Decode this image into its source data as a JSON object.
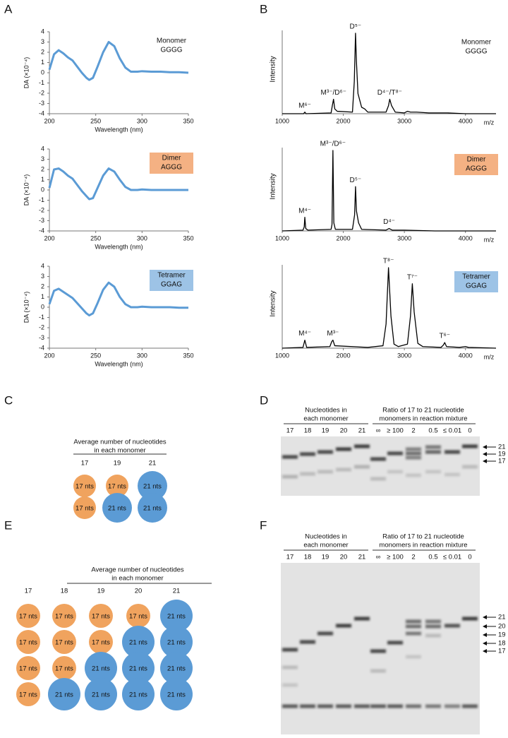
{
  "panel_labels": [
    "A",
    "B",
    "C",
    "D",
    "E",
    "F"
  ],
  "chart_data": [
    {
      "type": "line",
      "title_lines": [
        "Monomer",
        "GGGG"
      ],
      "title_box_color": null,
      "xlabel": "Wavelength (nm)",
      "ylabel": "DA (×10⁻⁴)",
      "xlim": [
        200,
        350
      ],
      "xticks": [
        200,
        250,
        300,
        350
      ],
      "ylim": [
        -4,
        4
      ],
      "yticks": [
        -4,
        -3,
        -2,
        -1,
        0,
        1,
        2,
        3,
        4
      ],
      "x": [
        200,
        205,
        210,
        215,
        220,
        225,
        230,
        235,
        240,
        243,
        247,
        252,
        258,
        264,
        270,
        276,
        282,
        288,
        295,
        300,
        310,
        320,
        330,
        340,
        350
      ],
      "series": [
        {
          "color": "#5b9bd5",
          "values": [
            0.3,
            1.8,
            2.2,
            1.9,
            1.5,
            1.2,
            0.6,
            0.0,
            -0.5,
            -0.7,
            -0.5,
            0.6,
            2.0,
            3.0,
            2.6,
            1.4,
            0.5,
            0.1,
            0.1,
            0.15,
            0.1,
            0.1,
            0.05,
            0.05,
            0.0
          ]
        }
      ]
    },
    {
      "type": "line",
      "title_lines": [
        "Dimer",
        "AGGG"
      ],
      "title_box_color": "#f4b183",
      "xlabel": "Wavelength (nm)",
      "ylabel": "DA (×10⁻⁴)",
      "xlim": [
        200,
        350
      ],
      "xticks": [
        200,
        250,
        300,
        350
      ],
      "ylim": [
        -4,
        4
      ],
      "yticks": [
        -4,
        -3,
        -2,
        -1,
        0,
        1,
        2,
        3,
        4
      ],
      "x": [
        200,
        205,
        210,
        215,
        220,
        225,
        230,
        235,
        240,
        243,
        247,
        252,
        258,
        264,
        270,
        276,
        282,
        288,
        295,
        300,
        310,
        320,
        330,
        340,
        350
      ],
      "series": [
        {
          "color": "#5b9bd5",
          "values": [
            0.2,
            2.0,
            2.1,
            1.8,
            1.4,
            1.1,
            0.5,
            -0.1,
            -0.6,
            -0.9,
            -0.8,
            0.2,
            1.4,
            2.1,
            1.8,
            1.0,
            0.3,
            0.0,
            0.0,
            0.05,
            0.0,
            0.0,
            0.0,
            0.0,
            0.0
          ]
        }
      ]
    },
    {
      "type": "line",
      "title_lines": [
        "Tetramer",
        "GGAG"
      ],
      "title_box_color": "#9dc3e6",
      "xlabel": "Wavelength (nm)",
      "ylabel": "DA (×10⁻⁴)",
      "xlim": [
        200,
        350
      ],
      "xticks": [
        200,
        250,
        300,
        350
      ],
      "ylim": [
        -4,
        4
      ],
      "yticks": [
        -4,
        -3,
        -2,
        -1,
        0,
        1,
        2,
        3,
        4
      ],
      "x": [
        200,
        205,
        210,
        215,
        220,
        225,
        230,
        235,
        240,
        243,
        247,
        252,
        258,
        264,
        270,
        276,
        282,
        288,
        295,
        300,
        310,
        320,
        330,
        340,
        350
      ],
      "series": [
        {
          "color": "#5b9bd5",
          "values": [
            0.3,
            1.6,
            1.8,
            1.5,
            1.2,
            0.9,
            0.4,
            -0.1,
            -0.6,
            -0.8,
            -0.6,
            0.4,
            1.7,
            2.4,
            2.0,
            1.0,
            0.3,
            0.0,
            0.0,
            0.05,
            0.0,
            0.0,
            0.0,
            -0.05,
            -0.05
          ]
        }
      ]
    },
    {
      "type": "spectrum",
      "title_lines": [
        "Monomer",
        "GGGG"
      ],
      "title_box_color": null,
      "xlabel": "m/z",
      "ylabel": "Intensity",
      "xlim": [
        1000,
        4500
      ],
      "xticks": [
        1000,
        2000,
        3000,
        4000
      ],
      "ylim": [
        0,
        100
      ],
      "x": [
        1000,
        1350,
        1370,
        1390,
        1800,
        1820,
        1840,
        1860,
        1900,
        2150,
        2180,
        2200,
        2215,
        2240,
        2300,
        2350,
        2400,
        2700,
        2740,
        2760,
        2790,
        2850,
        3000,
        3050,
        3100,
        3200,
        3400,
        3700,
        4000,
        4500
      ],
      "series": [
        {
          "color": "#000000",
          "values": [
            0,
            0,
            2,
            0,
            1,
            10,
            18,
            6,
            3,
            2,
            40,
            100,
            65,
            25,
            8,
            6,
            2,
            2,
            10,
            18,
            10,
            2,
            1,
            3,
            2,
            2,
            1,
            1,
            0,
            0
          ]
        }
      ],
      "annotations": [
        {
          "text": "M⁶⁻",
          "x": 1370
        },
        {
          "text": "M³⁻/D⁶⁻",
          "x": 1840
        },
        {
          "text": "D⁵⁻",
          "x": 2200
        },
        {
          "text": "D⁴⁻/T⁸⁻",
          "x": 2760
        }
      ]
    },
    {
      "type": "spectrum",
      "title_lines": [
        "Dimer",
        "AGGG"
      ],
      "title_box_color": "#f4b183",
      "xlabel": "m/z",
      "ylabel": "Intensity",
      "xlim": [
        1000,
        4500
      ],
      "xticks": [
        1000,
        2000,
        3000,
        4000
      ],
      "ylim": [
        0,
        100
      ],
      "x": [
        1000,
        1340,
        1360,
        1370,
        1385,
        1420,
        1800,
        1815,
        1830,
        1845,
        1870,
        2150,
        2185,
        2200,
        2215,
        2250,
        2300,
        2700,
        2750,
        2800,
        3000,
        3500,
        4500
      ],
      "series": [
        {
          "color": "#000000",
          "values": [
            0,
            1,
            5,
            17,
            3,
            1,
            2,
            8,
            100,
            10,
            2,
            2,
            20,
            55,
            25,
            10,
            2,
            1,
            3,
            1,
            1,
            0,
            0
          ]
        }
      ],
      "annotations": [
        {
          "text": "M⁴⁻",
          "x": 1370
        },
        {
          "text": "M³⁻/D⁶⁻",
          "x": 1830
        },
        {
          "text": "D⁵⁻",
          "x": 2200
        },
        {
          "text": "D⁴⁻",
          "x": 2750
        }
      ]
    },
    {
      "type": "spectrum",
      "title_lines": [
        "Tetramer",
        "GGAG"
      ],
      "title_box_color": "#9dc3e6",
      "xlabel": "m/z",
      "ylabel": "Intensity",
      "xlim": [
        1000,
        4500
      ],
      "xticks": [
        1000,
        2000,
        3000,
        4000
      ],
      "ylim": [
        0,
        100
      ],
      "x": [
        1000,
        1340,
        1370,
        1400,
        1780,
        1810,
        1830,
        1860,
        2400,
        2650,
        2700,
        2740,
        2780,
        2830,
        2900,
        3050,
        3100,
        3130,
        3160,
        3220,
        3300,
        3600,
        3640,
        3660,
        3690,
        3900,
        4000,
        4050,
        4500
      ],
      "series": [
        {
          "color": "#000000",
          "values": [
            0,
            1,
            10,
            1,
            2,
            8,
            10,
            3,
            1,
            3,
            30,
            100,
            40,
            5,
            2,
            5,
            40,
            80,
            45,
            6,
            2,
            1,
            4,
            7,
            2,
            1,
            2,
            1,
            0
          ]
        }
      ],
      "annotations": [
        {
          "text": "M⁴⁻",
          "x": 1370
        },
        {
          "text": "M³⁻",
          "x": 1830
        },
        {
          "text": "T⁸⁻",
          "x": 2740
        },
        {
          "text": "T⁷⁻",
          "x": 3130
        },
        {
          "text": "T⁶⁻",
          "x": 3660
        }
      ]
    }
  ],
  "panel_c": {
    "title_lines": [
      "Average number of nucleotides",
      "in each monomer"
    ],
    "unit_styles": [
      {
        "label": "17 nts",
        "color": "#f0a35e"
      },
      {
        "label": "21 nts",
        "color": "#5b9bd5"
      }
    ],
    "columns": [
      {
        "header": "17",
        "units": [
          "17 nts",
          "17 nts"
        ]
      },
      {
        "header": "19",
        "units": [
          "17 nts",
          "21 nts"
        ]
      },
      {
        "header": "21",
        "units": [
          "21 nts",
          "21 nts"
        ]
      }
    ]
  },
  "panel_d": {
    "group_titles": [
      [
        "Nucleotides in",
        "each monomer"
      ],
      [
        "Ratio of 17 to 21 nucleotide",
        "monomers in reaction mixture"
      ]
    ],
    "lanes": [
      [
        "17",
        "18",
        "19",
        "20",
        "21"
      ],
      [
        "∞",
        "≥ 100",
        "2",
        "0.5",
        "≤ 0.01",
        "0"
      ]
    ],
    "markers": [
      "21",
      "19",
      "17"
    ]
  },
  "panel_e": {
    "title_lines": [
      "Average number of nucleotides",
      "in each monomer"
    ],
    "unit_styles": [
      {
        "label": "17 nts",
        "color": "#f0a35e"
      },
      {
        "label": "21 nts",
        "color": "#5b9bd5"
      }
    ],
    "columns": [
      {
        "header": "17",
        "units": [
          "17 nts",
          "17 nts",
          "17 nts",
          "17 nts"
        ]
      },
      {
        "header": "18",
        "units": [
          "17 nts",
          "17 nts",
          "17 nts",
          "21 nts"
        ]
      },
      {
        "header": "19",
        "units": [
          "17 nts",
          "17 nts",
          "21 nts",
          "21 nts"
        ]
      },
      {
        "header": "20",
        "units": [
          "17 nts",
          "21 nts",
          "21 nts",
          "21 nts"
        ]
      },
      {
        "header": "21",
        "units": [
          "21 nts",
          "21 nts",
          "21 nts",
          "21 nts"
        ]
      }
    ]
  },
  "panel_f": {
    "group_titles": [
      [
        "Nucleotides in",
        "each monomer"
      ],
      [
        "Ratio of 17 to 21 nucleotide",
        "monomers in reaction mixture"
      ]
    ],
    "lanes": [
      [
        "17",
        "18",
        "19",
        "20",
        "21"
      ],
      [
        "∞",
        "≥ 100",
        "2",
        "0.5",
        "≤ 0.01",
        "0"
      ]
    ],
    "markers": [
      "21",
      "20",
      "19",
      "18",
      "17"
    ]
  }
}
